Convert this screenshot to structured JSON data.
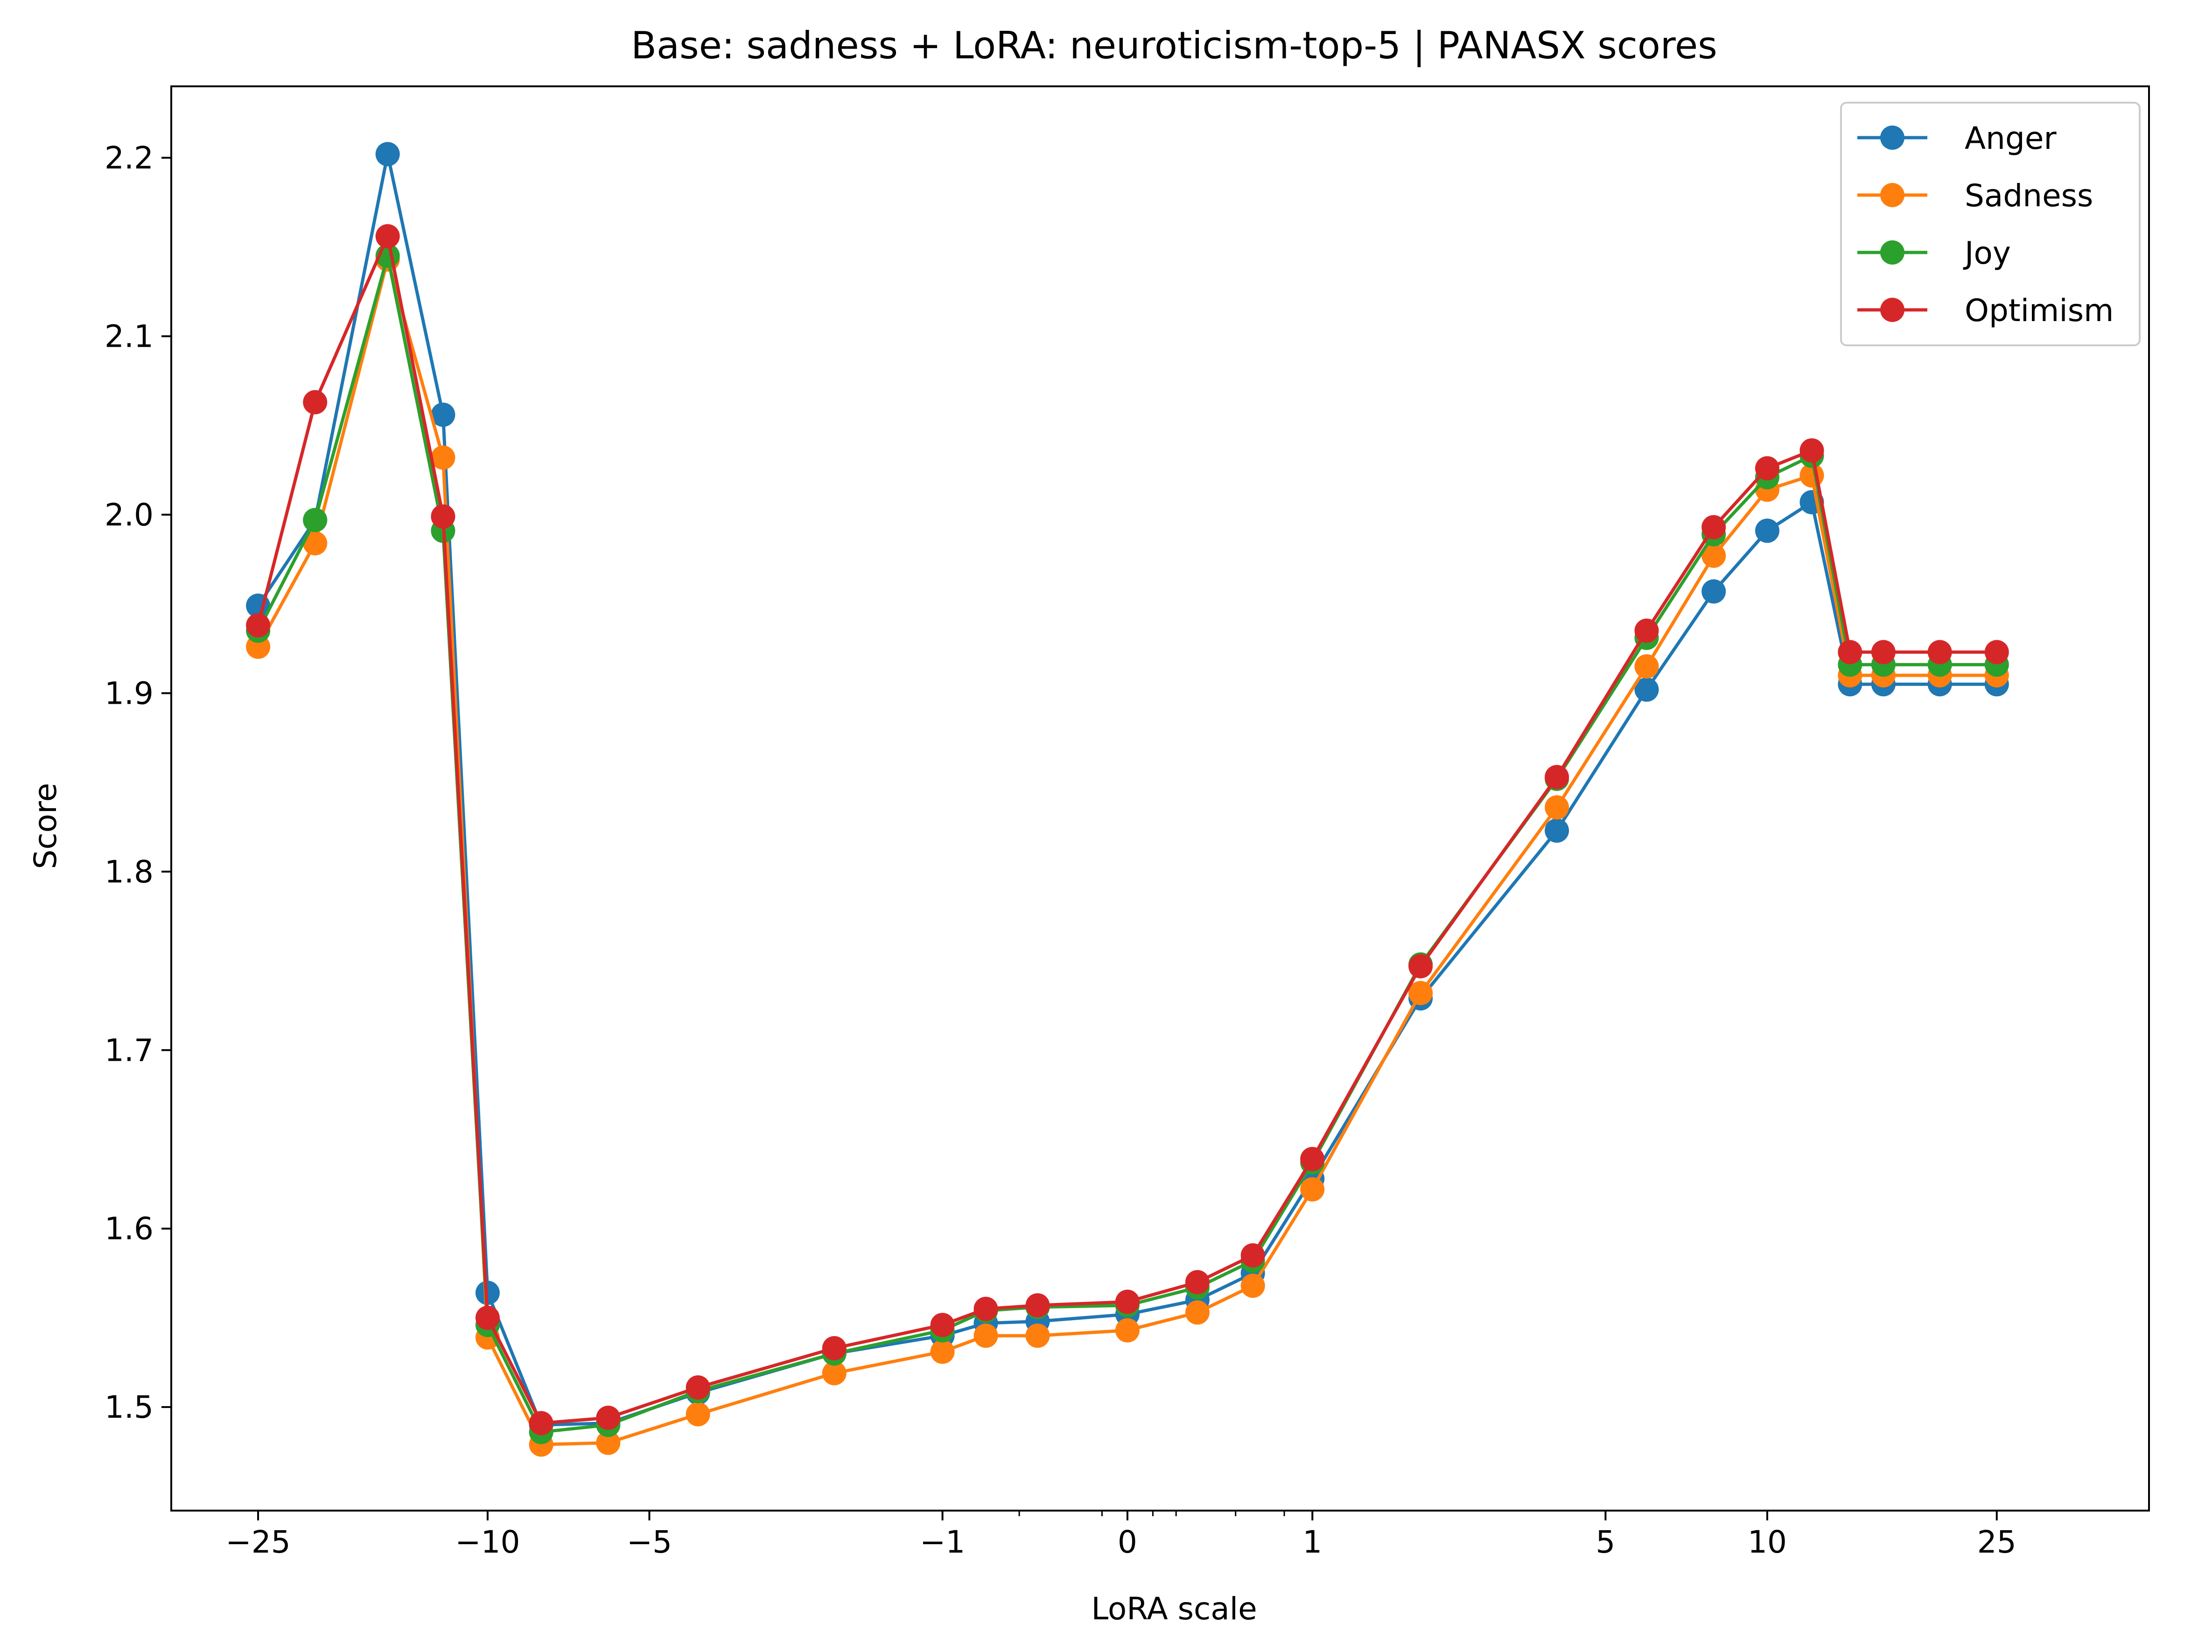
{
  "chart_data": {
    "type": "line",
    "title": "Base: sadness + LoRA: neuroticism-top-5 | PANASX scores",
    "xlabel": "LoRA scale",
    "ylabel": "Score",
    "x_scale": "symlog",
    "xlim": [
      -35,
      45
    ],
    "ylim": [
      1.442,
      2.24
    ],
    "grid": false,
    "legend_position": "top-right",
    "x_ticks_major": [
      {
        "value": -25,
        "label": "−25"
      },
      {
        "value": -10,
        "label": "−10"
      },
      {
        "value": -5,
        "label": "−5"
      },
      {
        "value": -1,
        "label": "−1"
      },
      {
        "value": 0,
        "label": "0"
      },
      {
        "value": 1,
        "label": "1"
      },
      {
        "value": 5,
        "label": "5"
      },
      {
        "value": 10,
        "label": "10"
      },
      {
        "value": 25,
        "label": "25"
      }
    ],
    "x_ticks_minor": [
      -0.5,
      -0.1,
      0.1,
      0.2,
      0.5,
      0.8
    ],
    "y_ticks": [
      {
        "value": 1.5,
        "label": "1.5"
      },
      {
        "value": 1.6,
        "label": "1.6"
      },
      {
        "value": 1.7,
        "label": "1.7"
      },
      {
        "value": 1.8,
        "label": "1.8"
      },
      {
        "value": 1.9,
        "label": "1.9"
      },
      {
        "value": 2.0,
        "label": "2.0"
      },
      {
        "value": 2.1,
        "label": "2.1"
      },
      {
        "value": 2.2,
        "label": "2.2"
      }
    ],
    "x": [
      -25,
      -20,
      -15,
      -12,
      -10,
      -8,
      -6,
      -4,
      -2,
      -1,
      -0.7,
      -0.4,
      0,
      0.3,
      0.6,
      1,
      2,
      4,
      6,
      8,
      10,
      12,
      14,
      16,
      20,
      25
    ],
    "series": [
      {
        "name": "Anger",
        "color": "#1f77b4",
        "values": [
          1.949,
          1.997,
          2.202,
          2.056,
          1.564,
          1.49,
          1.491,
          1.508,
          1.53,
          1.54,
          1.547,
          1.548,
          1.552,
          1.56,
          1.575,
          1.628,
          1.729,
          1.823,
          1.902,
          1.957,
          1.991,
          2.007,
          1.905,
          1.905,
          1.905,
          1.905
        ]
      },
      {
        "name": "Sadness",
        "color": "#ff7f0e",
        "values": [
          1.926,
          1.984,
          2.143,
          2.032,
          1.539,
          1.479,
          1.48,
          1.496,
          1.519,
          1.531,
          1.54,
          1.54,
          1.543,
          1.553,
          1.568,
          1.622,
          1.732,
          1.836,
          1.915,
          1.977,
          2.014,
          2.022,
          1.91,
          1.91,
          1.91,
          1.91
        ]
      },
      {
        "name": "Joy",
        "color": "#2ca02c",
        "values": [
          1.935,
          1.997,
          2.145,
          1.991,
          1.546,
          1.486,
          1.49,
          1.509,
          1.53,
          1.543,
          1.554,
          1.556,
          1.557,
          1.567,
          1.582,
          1.637,
          1.748,
          1.852,
          1.931,
          1.989,
          2.021,
          2.033,
          1.916,
          1.916,
          1.916,
          1.916
        ]
      },
      {
        "name": "Optimism",
        "color": "#d62728",
        "values": [
          1.938,
          2.063,
          2.156,
          1.999,
          1.55,
          1.491,
          1.494,
          1.511,
          1.533,
          1.546,
          1.555,
          1.557,
          1.559,
          1.57,
          1.585,
          1.639,
          1.747,
          1.853,
          1.935,
          1.993,
          2.026,
          2.036,
          1.923,
          1.923,
          1.923,
          1.923
        ]
      }
    ]
  }
}
